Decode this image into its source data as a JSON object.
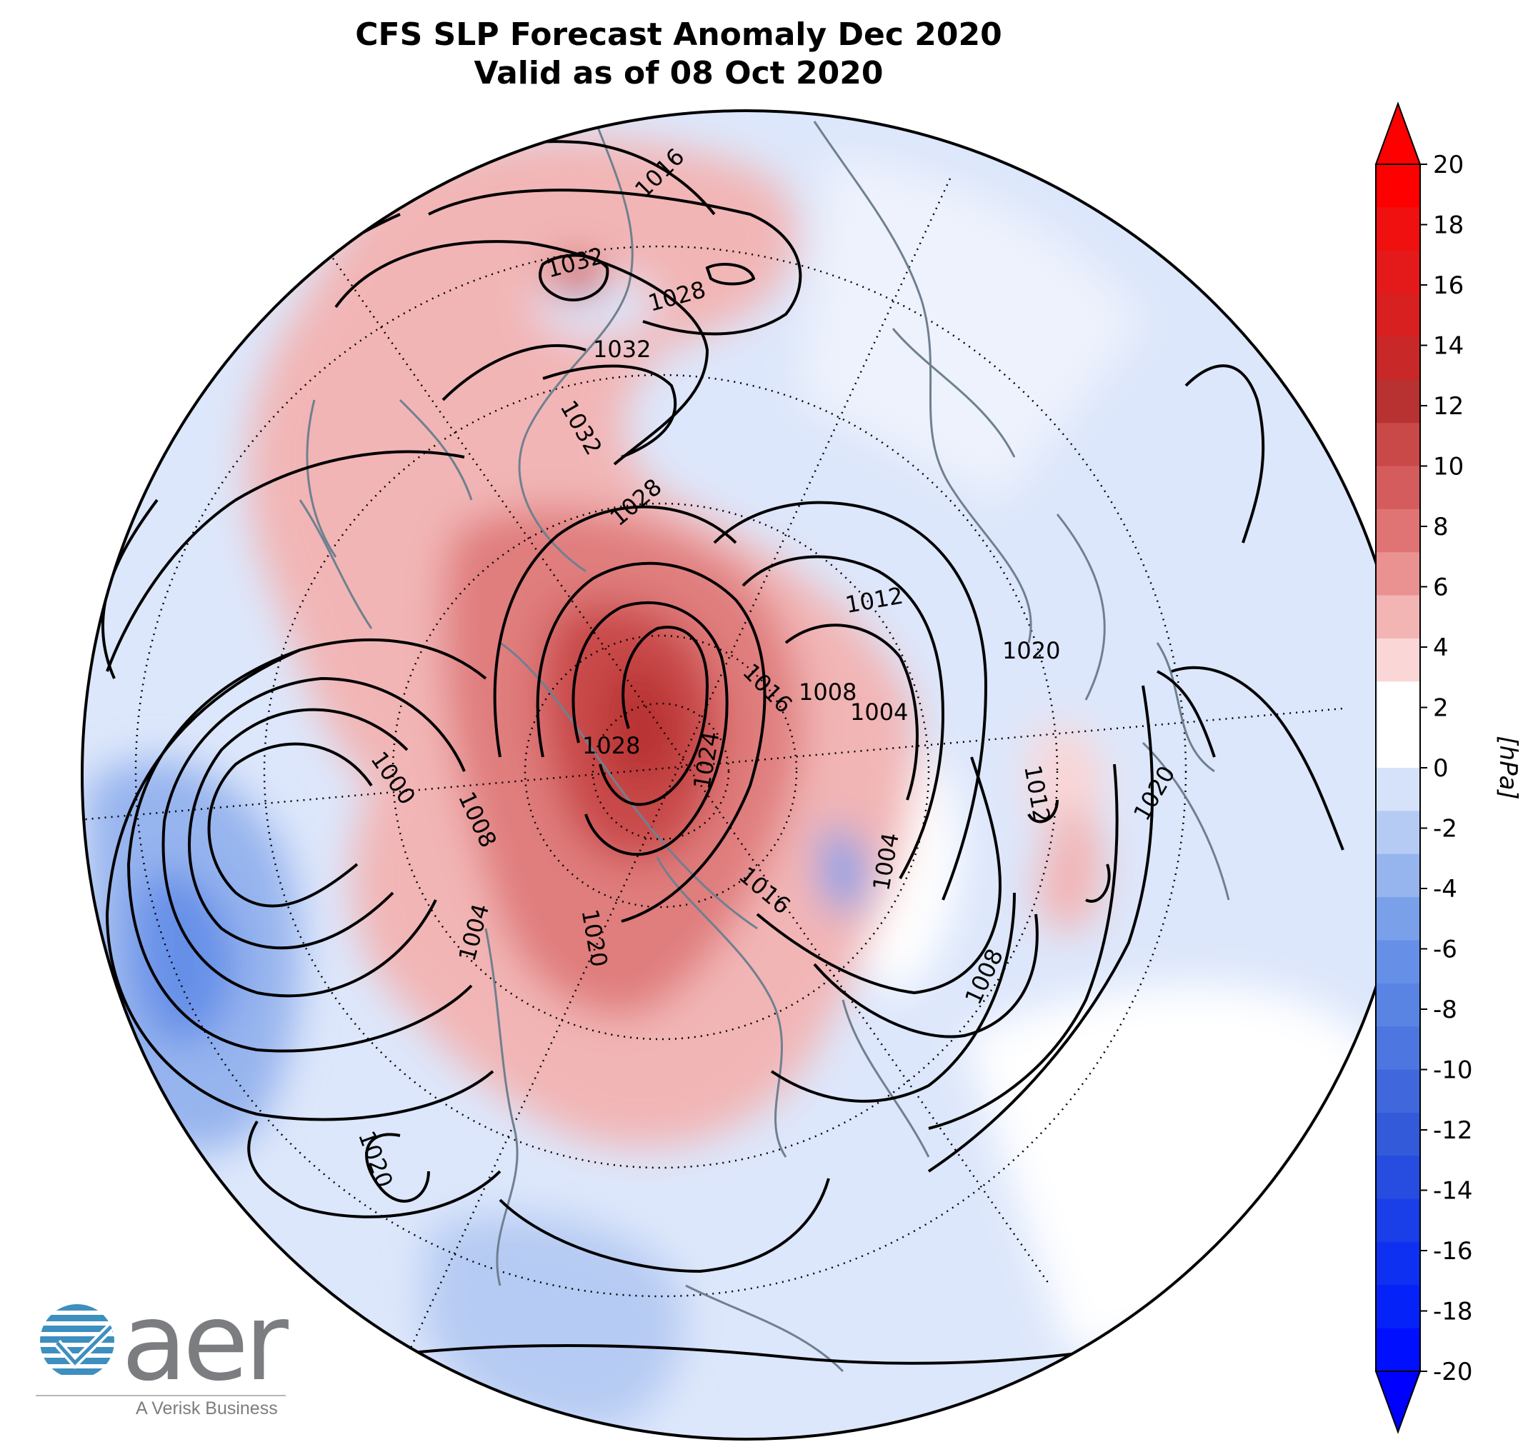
{
  "title": {
    "line1": "CFS SLP Forecast Anomaly Dec 2020",
    "line2": "Valid as of 08 Oct 2020"
  },
  "colorbar": {
    "unit": "[hPa]",
    "ticks": [
      "20",
      "18",
      "16",
      "14",
      "12",
      "10",
      "8",
      "6",
      "4",
      "2",
      "0",
      "-2",
      "-4",
      "-6",
      "-8",
      "-10",
      "-12",
      "-14",
      "-16",
      "-18",
      "-20"
    ],
    "colors_top_to_bottom": [
      "#ff0000",
      "#f01010",
      "#e41a1a",
      "#d82020",
      "#c82828",
      "#b83232",
      "#c94848",
      "#d55c5c",
      "#e07474",
      "#ea9292",
      "#f3b4b4",
      "#fad6d6",
      "#ffffff",
      "#ffffff",
      "#d6e2fa",
      "#b6cbf3",
      "#96b4ee",
      "#7ba0ea",
      "#6690e8",
      "#5a84e4",
      "#4d76e0",
      "#4068dc",
      "#335ad8",
      "#264ce0",
      "#1a3ee8",
      "#0e30f0",
      "#0522f8",
      "#0010ff"
    ]
  },
  "contour_labels": [
    "1016",
    "1032",
    "1028",
    "1032",
    "1032",
    "1028",
    "1012",
    "1020",
    "1008",
    "1004",
    "1016",
    "1028",
    "1024",
    "1000",
    "1008",
    "1012",
    "1020",
    "1004",
    "1016",
    "1004",
    "1020",
    "1008",
    "1020"
  ],
  "logo": {
    "word": "aer",
    "tagline": "A Verisk Business",
    "accent": "#3d8fbf"
  }
}
